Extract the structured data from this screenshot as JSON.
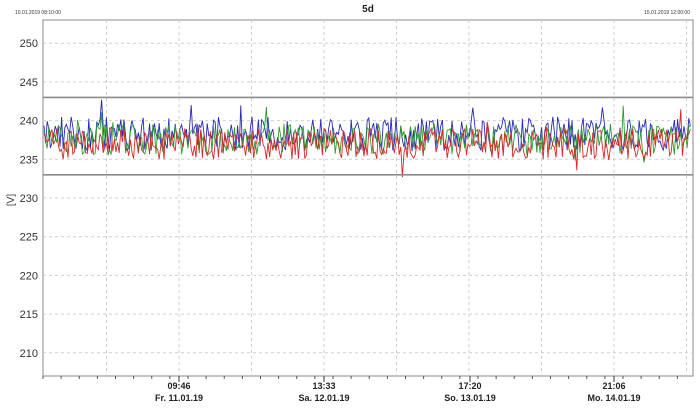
{
  "chart_data": {
    "type": "line",
    "title": "5d",
    "range_start_label": "10.01.2019 08:10:00",
    "range_end_label": "15.01.2019 12:00:00",
    "ylabel": "[V]",
    "xlabel": "",
    "ylim": [
      207,
      253
    ],
    "y_ticks": [
      210,
      215,
      220,
      225,
      230,
      235,
      240,
      245,
      250
    ],
    "limits": [
      243,
      233
    ],
    "grid": true,
    "x_ticks": [
      {
        "time": "09:46",
        "date": "Fr. 11.01.19"
      },
      {
        "time": "13:33",
        "date": "Sa. 12.01.19"
      },
      {
        "time": "17:20",
        "date": "So. 13.01.19"
      },
      {
        "time": "21:06",
        "date": "Mo. 14.01.19"
      }
    ],
    "series": [
      {
        "color": "#2a2ab8",
        "center": 238.3,
        "amplitude": 2.2
      },
      {
        "color": "#2e9e2e",
        "center": 237.6,
        "amplitude": 2.0
      },
      {
        "color": "#d62a2a",
        "center": 237.0,
        "amplitude": 2.0
      }
    ]
  }
}
